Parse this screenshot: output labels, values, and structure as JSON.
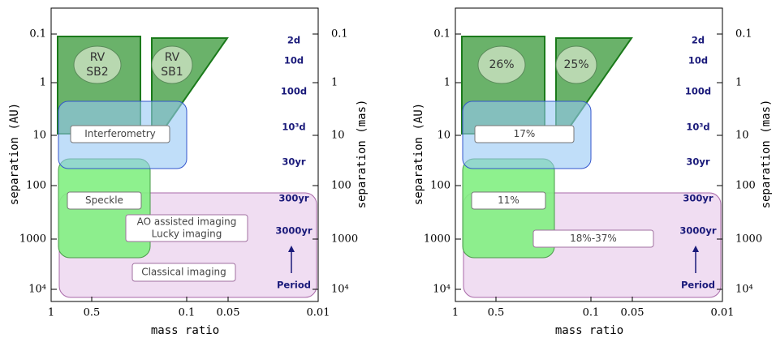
{
  "panels": [
    {
      "y_axis_label": "separation (AU)",
      "y2_axis_label": "separation (mas)",
      "x_axis_label": "mass ratio",
      "y_ticks": [
        "0.1",
        "1",
        "10",
        "100",
        "1000",
        "10⁴"
      ],
      "y2_ticks": [
        "0.1",
        "1",
        "10",
        "100",
        "1000",
        "10⁴"
      ],
      "x_ticks": [
        "1",
        "0.5",
        "0.1",
        "0.05",
        "0.01"
      ],
      "periods": [
        "2d",
        "10d",
        "100d",
        "10³d",
        "30yr",
        "300yr",
        "3000yr",
        "Period"
      ],
      "labels": {
        "sb2": [
          "RV",
          "SB2"
        ],
        "sb1": [
          "RV",
          "SB1"
        ],
        "interferometry": [
          "Interferometry"
        ],
        "speckle": [
          "Speckle"
        ],
        "ao": [
          "AO assisted imaging",
          "Lucky imaging"
        ],
        "classical": [
          "Classical imaging"
        ]
      }
    },
    {
      "y_axis_label": "separation (AU)",
      "y2_axis_label": "separation (mas)",
      "x_axis_label": "mass ratio",
      "y_ticks": [
        "0.1",
        "1",
        "10",
        "100",
        "1000",
        "10⁴"
      ],
      "y2_ticks": [
        "0.1",
        "1",
        "10",
        "100",
        "1000",
        "10⁴"
      ],
      "x_ticks": [
        "1",
        "0.5",
        "0.1",
        "0.05",
        "0.01"
      ],
      "periods": [
        "2d",
        "10d",
        "100d",
        "10³d",
        "30yr",
        "300yr",
        "3000yr",
        "Period"
      ],
      "labels": {
        "sb2": [
          "26%"
        ],
        "sb1": [
          "25%"
        ],
        "interferometry": [
          "17%"
        ],
        "speckle": [
          "11%"
        ],
        "ao": [
          "18%-37%"
        ]
      }
    }
  ]
}
